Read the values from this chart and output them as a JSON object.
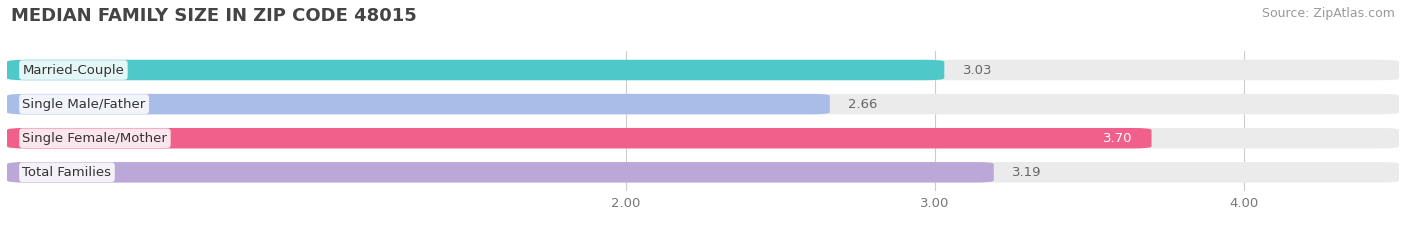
{
  "title": "MEDIAN FAMILY SIZE IN ZIP CODE 48015",
  "source": "Source: ZipAtlas.com",
  "categories": [
    "Married-Couple",
    "Single Male/Father",
    "Single Female/Mother",
    "Total Families"
  ],
  "values": [
    3.03,
    2.66,
    3.7,
    3.19
  ],
  "bar_colors": [
    "#4EC8C8",
    "#AABCE8",
    "#F0608A",
    "#BBA8D8"
  ],
  "bar_bg_color": "#EBEBEB",
  "xlim": [
    0,
    4.5
  ],
  "xticks": [
    2.0,
    3.0,
    4.0
  ],
  "xticklabels": [
    "2.00",
    "3.00",
    "4.00"
  ],
  "highlight_index": 2,
  "background_color": "#FFFFFF",
  "bar_height": 0.6,
  "title_fontsize": 13,
  "source_fontsize": 9,
  "label_fontsize": 9.5,
  "value_fontsize": 9.5,
  "tick_fontsize": 9.5,
  "grid_color": "#CCCCCC"
}
